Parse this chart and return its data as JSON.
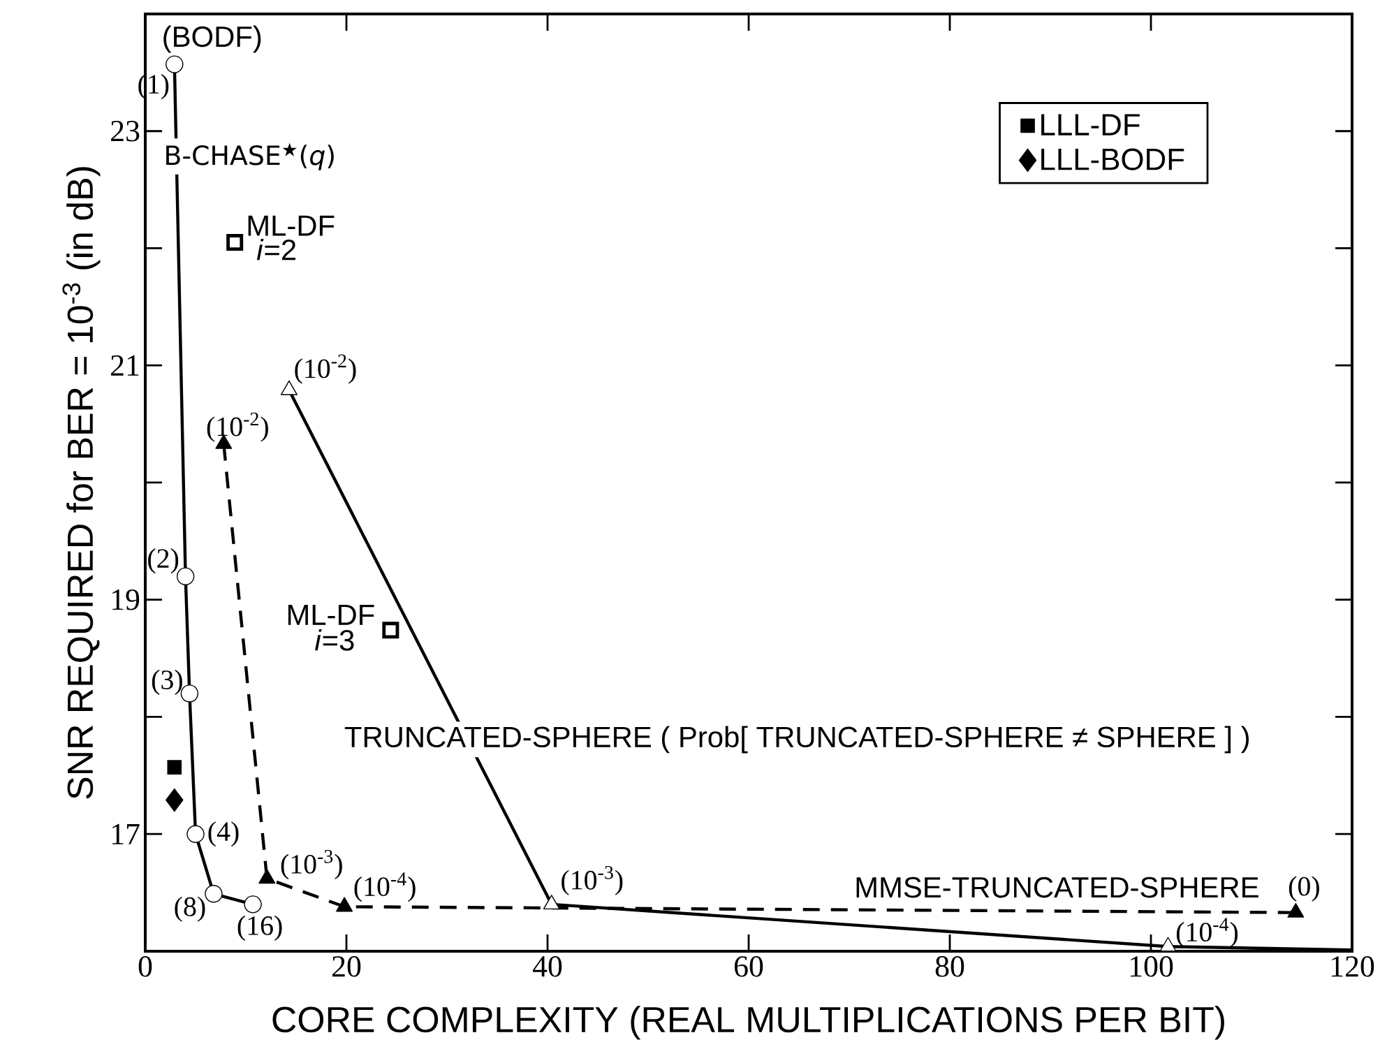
{
  "chart_data": {
    "type": "line",
    "xlabel": "CORE COMPLEXITY (REAL MULTIPLICATIONS PER BIT)",
    "ylabel": "SNR REQUIRED for BER = 10$^{-3}$ (in dB)",
    "xlim": [
      0,
      120
    ],
    "ylim": [
      16,
      24
    ],
    "xticks": [
      0,
      20,
      40,
      60,
      80,
      100,
      120
    ],
    "yticks": [
      17,
      {
        "value": 18,
        "label": null
      },
      19,
      {
        "value": 20,
        "label": null
      },
      21,
      {
        "value": 22,
        "label": null
      },
      23
    ],
    "legend": "top right",
    "series": [
      {
        "color": "#000000",
        "marker": "circle",
        "line_style": "solid",
        "x": [
          2.9,
          4.0,
          4.4,
          5.0,
          6.8,
          10.7
        ],
        "values": [
          23.57,
          19.2,
          18.2,
          17.0,
          16.49,
          16.4
        ]
      },
      {
        "color": "#000000",
        "marker": "triangle",
        "line_style": "solid",
        "x": [
          14.3,
          40.4,
          101.7
        ],
        "values": [
          20.79,
          16.4,
          16.04
        ]
      },
      {
        "color": "#000000",
        "marker": "none",
        "line_style": "solid",
        "x": [
          101.7,
          120
        ],
        "values": [
          16.04,
          16.01
        ]
      },
      {
        "color": "#000000",
        "marker": "triangle",
        "line_style": "dashed",
        "x": [
          7.8,
          12.1,
          19.8,
          114.4
        ],
        "values": [
          20.33,
          16.62,
          16.38,
          16.33
        ]
      },
      {
        "type": "scatter",
        "color": "#000000",
        "marker": "square",
        "x": [
          8.9,
          24.4
        ],
        "values": [
          22.05,
          18.74
        ]
      },
      {
        "type": "scatter",
        "name": "LLL-DF",
        "color": "#000000",
        "marker": "square",
        "x": [
          2.9
        ],
        "values": [
          17.57
        ]
      },
      {
        "type": "scatter",
        "name": "LLL-BODF",
        "color": "#000000",
        "marker": "diamond",
        "x": [
          2.9
        ],
        "values": [
          17.29
        ]
      }
    ],
    "annotations": [
      "(BODF)",
      "(1)",
      "B-CHASE$^{★}$(*q*)",
      "ML-DF",
      "*i*=2",
      "(10$^{-2}$)",
      "(10$^{-2}$)",
      "(2)",
      "(3)",
      "ML-DF",
      "*i*=3",
      "TRUNCATED-SPHERE ( Prob[ TRUNCATED-SPHERE ≠ SPHERE ] )",
      "(4)",
      "(10$^{-3}$)",
      "(8)",
      "(16)",
      "(10$^{-4}$)",
      "(10$^{-3}$)",
      "MMSE-TRUNCATED-SPHERE",
      "(0)",
      "(10$^{-4}$)"
    ]
  }
}
